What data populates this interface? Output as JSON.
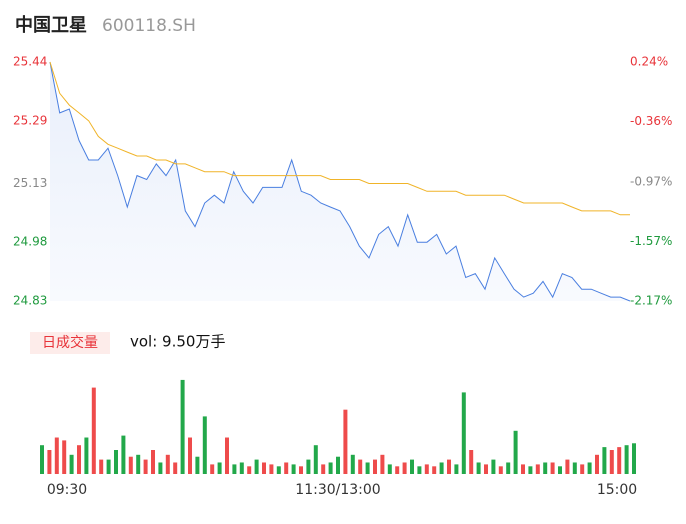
{
  "chart_data": [
    {
      "type": "line",
      "title": "中国卫星",
      "subtitle": "600118.SH",
      "x": [
        0,
        4,
        8,
        12,
        16,
        20,
        24,
        28,
        32,
        36,
        40,
        44,
        48,
        52,
        56,
        60,
        64,
        68,
        72,
        76,
        80,
        84,
        88,
        92,
        96,
        100,
        104,
        108,
        112,
        116,
        120,
        124,
        128,
        132,
        136,
        140,
        144,
        148,
        152,
        156,
        160,
        164,
        168,
        172,
        176,
        180,
        184,
        188,
        192,
        196,
        200,
        204,
        208,
        212,
        216,
        220,
        224,
        228,
        232,
        236,
        240
      ],
      "xlim": [
        0,
        240
      ],
      "series": [
        {
          "color": "#4a7fe0",
          "values": [
            25.44,
            25.31,
            25.32,
            25.24,
            25.19,
            25.19,
            25.22,
            25.15,
            25.07,
            25.15,
            25.14,
            25.18,
            25.15,
            25.19,
            25.06,
            25.02,
            25.08,
            25.1,
            25.08,
            25.16,
            25.11,
            25.08,
            25.12,
            25.12,
            25.12,
            25.19,
            25.11,
            25.1,
            25.08,
            25.07,
            25.06,
            25.02,
            24.97,
            24.94,
            25.0,
            25.02,
            24.97,
            25.05,
            24.98,
            24.98,
            25.0,
            24.95,
            24.97,
            24.89,
            24.9,
            24.86,
            24.94,
            24.9,
            24.86,
            24.84,
            24.85,
            24.88,
            24.84,
            24.9,
            24.89,
            24.86,
            24.86,
            24.85,
            24.84,
            24.84,
            24.83
          ]
        },
        {
          "color": "#f0b429",
          "values": [
            25.44,
            25.36,
            25.33,
            25.31,
            25.29,
            25.25,
            25.23,
            25.22,
            25.21,
            25.2,
            25.2,
            25.19,
            25.19,
            25.18,
            25.18,
            25.17,
            25.16,
            25.16,
            25.16,
            25.15,
            25.15,
            25.15,
            25.15,
            25.15,
            25.15,
            25.15,
            25.15,
            25.15,
            25.15,
            25.14,
            25.14,
            25.14,
            25.14,
            25.13,
            25.13,
            25.13,
            25.13,
            25.13,
            25.12,
            25.11,
            25.11,
            25.11,
            25.11,
            25.1,
            25.1,
            25.1,
            25.1,
            25.1,
            25.09,
            25.08,
            25.08,
            25.08,
            25.08,
            25.08,
            25.07,
            25.06,
            25.06,
            25.06,
            25.06,
            25.05,
            25.05
          ]
        }
      ],
      "ylim": [
        24.83,
        25.44
      ],
      "yticks": [
        25.44,
        25.29,
        25.13,
        24.98,
        24.83
      ],
      "ytick_colors": [
        "#e8343a",
        "#e8343a",
        "#888888",
        "#1f9a3e",
        "#1f9a3e"
      ],
      "y2lim": [
        -2.17,
        0.24
      ],
      "y2ticks": [
        {
          "value": 0.24,
          "label": "0.24%"
        },
        {
          "value": -0.36,
          "label": "-0.36%"
        },
        {
          "value": -0.97,
          "label": "-0.97%"
        },
        {
          "value": -1.57,
          "label": "-1.57%"
        },
        {
          "value": -2.17,
          "label": "-2.17%"
        }
      ],
      "y2tick_colors": [
        "#e8343a",
        "#e8343a",
        "#888888",
        "#1f9a3e",
        "#1f9a3e"
      ]
    },
    {
      "type": "bar",
      "title": "日成交量",
      "annotation": "vol: 9.50万手",
      "x": [
        0,
        3,
        6,
        9,
        12,
        15,
        18,
        21,
        24,
        27,
        30,
        33,
        36,
        39,
        42,
        45,
        48,
        51,
        54,
        57,
        60,
        63,
        66,
        69,
        72,
        75,
        78,
        81,
        84,
        87,
        90,
        93,
        96,
        99,
        102,
        105,
        108,
        111,
        114,
        117,
        120,
        123,
        126,
        129,
        132,
        135,
        138,
        141,
        144,
        147,
        150,
        153,
        156,
        159,
        162,
        165,
        168,
        171,
        174,
        177,
        180,
        183,
        186,
        189,
        192,
        195,
        198,
        201,
        204,
        207,
        210,
        213,
        216,
        219,
        222,
        225,
        228,
        231,
        234,
        237,
        240
      ],
      "values": [
        30,
        25,
        38,
        35,
        20,
        30,
        38,
        90,
        15,
        15,
        25,
        40,
        18,
        20,
        15,
        25,
        12,
        20,
        12,
        98,
        38,
        18,
        60,
        10,
        12,
        38,
        10,
        12,
        8,
        15,
        12,
        10,
        8,
        12,
        10,
        8,
        15,
        30,
        10,
        12,
        18,
        67,
        20,
        15,
        12,
        15,
        20,
        10,
        8,
        12,
        15,
        8,
        10,
        8,
        12,
        15,
        10,
        85,
        25,
        12,
        10,
        15,
        8,
        12,
        45,
        10,
        8,
        10,
        12,
        12,
        8,
        15,
        12,
        10,
        12,
        20,
        28,
        25,
        28,
        30,
        32
      ],
      "colors": [
        "#22a84a",
        "#ee4b4b",
        "#ee4b4b",
        "#ee4b4b",
        "#22a84a",
        "#ee4b4b",
        "#22a84a",
        "#ee4b4b",
        "#ee4b4b",
        "#22a84a",
        "#22a84a",
        "#22a84a",
        "#ee4b4b",
        "#22a84a",
        "#ee4b4b",
        "#ee4b4b",
        "#22a84a",
        "#ee4b4b",
        "#ee4b4b",
        "#22a84a",
        "#ee4b4b",
        "#22a84a",
        "#22a84a",
        "#ee4b4b",
        "#22a84a",
        "#ee4b4b",
        "#22a84a",
        "#22a84a",
        "#ee4b4b",
        "#22a84a",
        "#ee4b4b",
        "#ee4b4b",
        "#22a84a",
        "#ee4b4b",
        "#22a84a",
        "#ee4b4b",
        "#22a84a",
        "#22a84a",
        "#ee4b4b",
        "#22a84a",
        "#22a84a",
        "#ee4b4b",
        "#22a84a",
        "#ee4b4b",
        "#22a84a",
        "#ee4b4b",
        "#ee4b4b",
        "#22a84a",
        "#ee4b4b",
        "#ee4b4b",
        "#22a84a",
        "#22a84a",
        "#ee4b4b",
        "#ee4b4b",
        "#22a84a",
        "#ee4b4b",
        "#22a84a",
        "#22a84a",
        "#ee4b4b",
        "#22a84a",
        "#ee4b4b",
        "#22a84a",
        "#ee4b4b",
        "#22a84a",
        "#22a84a",
        "#ee4b4b",
        "#22a84a",
        "#ee4b4b",
        "#22a84a",
        "#ee4b4b",
        "#22a84a",
        "#ee4b4b",
        "#22a84a",
        "#ee4b4b",
        "#22a84a",
        "#ee4b4b",
        "#22a84a",
        "#ee4b4b",
        "#ee4b4b",
        "#22a84a",
        "#22a84a"
      ],
      "xlim": [
        0,
        240
      ],
      "ylim": [
        0,
        100
      ],
      "xticks": [
        {
          "value": 0,
          "label": "09:30"
        },
        {
          "value": 120,
          "label": "11:30/13:00"
        },
        {
          "value": 240,
          "label": "15:00"
        }
      ]
    }
  ]
}
